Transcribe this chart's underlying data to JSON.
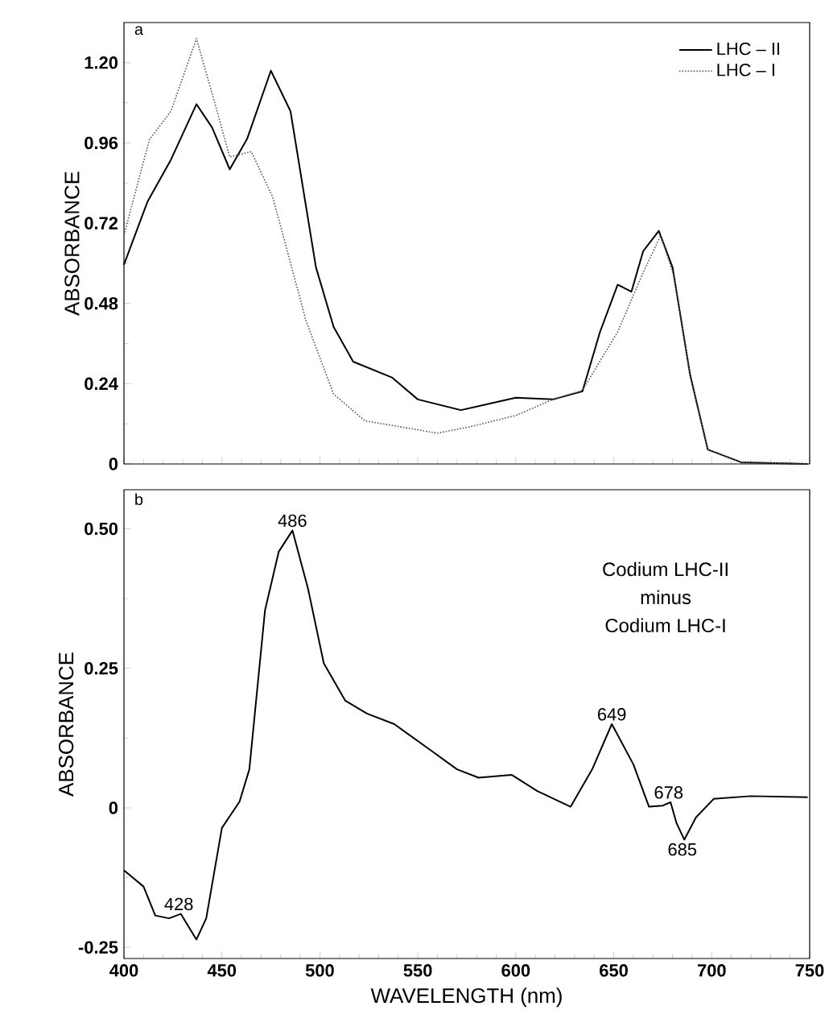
{
  "chart_data": [
    {
      "type": "line",
      "ylabel": "ABSORBANCE",
      "xlim": [
        400,
        750
      ],
      "ylim": [
        0,
        1.32
      ],
      "xticks": [
        400,
        450,
        500,
        550,
        600,
        650,
        700,
        750
      ],
      "yticks": [
        0,
        0.24,
        0.48,
        0.72,
        0.96,
        {
          "value": 1.2,
          "label": "1.20"
        }
      ],
      "tick_labels": "y",
      "legend": "top right",
      "marker": "none",
      "annotations": [
        "a"
      ],
      "series": [
        {
          "name": "LHC – II",
          "color": "#000000",
          "line_style": "solid",
          "x": [
            400,
            412,
            424,
            437,
            445,
            454,
            463,
            475,
            485,
            498,
            507,
            517,
            537,
            550,
            572,
            600,
            619,
            634,
            643,
            652,
            659,
            665,
            673,
            680,
            689,
            698,
            715,
            749
          ],
          "values": [
            0.596,
            0.784,
            0.91,
            1.076,
            1.006,
            0.881,
            0.974,
            1.176,
            1.055,
            0.588,
            0.41,
            0.306,
            0.258,
            0.193,
            0.161,
            0.198,
            0.193,
            0.217,
            0.395,
            0.536,
            0.515,
            0.636,
            0.697,
            0.588,
            0.266,
            0.043,
            0.005,
            0
          ]
        },
        {
          "name": "LHC – I",
          "color": "#555555",
          "line_style": "dotted",
          "x": [
            400,
            413,
            424,
            437,
            446,
            454,
            465,
            476,
            493,
            507,
            523,
            539,
            560,
            578,
            600,
            619,
            634,
            652,
            665,
            674,
            681,
            689,
            698,
            715,
            749
          ],
          "values": [
            0.684,
            0.97,
            1.055,
            1.272,
            1.087,
            0.918,
            0.934,
            0.797,
            0.427,
            0.209,
            0.129,
            0.113,
            0.092,
            0.113,
            0.145,
            0.193,
            0.22,
            0.395,
            0.572,
            0.684,
            0.556,
            0.266,
            0.043,
            0.005,
            0
          ]
        }
      ]
    },
    {
      "type": "line",
      "xlabel": "WAVELENGTH (nm)",
      "ylabel": "ABSORBANCE",
      "xlim": [
        400,
        750
      ],
      "ylim": [
        -0.27,
        0.57
      ],
      "xticks": [
        400,
        450,
        500,
        550,
        600,
        650,
        700,
        750
      ],
      "yticks": [
        -0.25,
        0,
        0.25,
        {
          "value": 0.5,
          "label": "0.50"
        }
      ],
      "marker": "none",
      "annotations": [
        "b",
        "Codium LHC-II",
        "minus",
        "Codium LHC-I",
        {
          "text": "486",
          "x": 486,
          "y": 0.497
        },
        {
          "text": "428",
          "x": 428,
          "y": -0.19
        },
        {
          "text": "649",
          "x": 649,
          "y": 0.15
        },
        {
          "text": "678",
          "x": 678,
          "y": 0.01
        },
        {
          "text": "685",
          "x": 685,
          "y": -0.057
        }
      ],
      "series": [
        {
          "color": "#000000",
          "line_style": "solid",
          "x": [
            400,
            410,
            416,
            423,
            429,
            437,
            442,
            450,
            459,
            464,
            472,
            479,
            486,
            494,
            502,
            513,
            524,
            538,
            557,
            570,
            581,
            598,
            611,
            628,
            639,
            649,
            660,
            668,
            675,
            679,
            682,
            686,
            692,
            701,
            720,
            749
          ],
          "values": [
            -0.112,
            -0.141,
            -0.193,
            -0.198,
            -0.19,
            -0.236,
            -0.198,
            -0.036,
            0.011,
            0.069,
            0.354,
            0.459,
            0.497,
            0.392,
            0.259,
            0.192,
            0.169,
            0.15,
            0.102,
            0.069,
            0.054,
            0.059,
            0.03,
            0.002,
            0.069,
            0.15,
            0.078,
            0.002,
            0.004,
            0.01,
            -0.027,
            -0.057,
            -0.017,
            0.016,
            0.021,
            0.019
          ]
        }
      ]
    }
  ]
}
